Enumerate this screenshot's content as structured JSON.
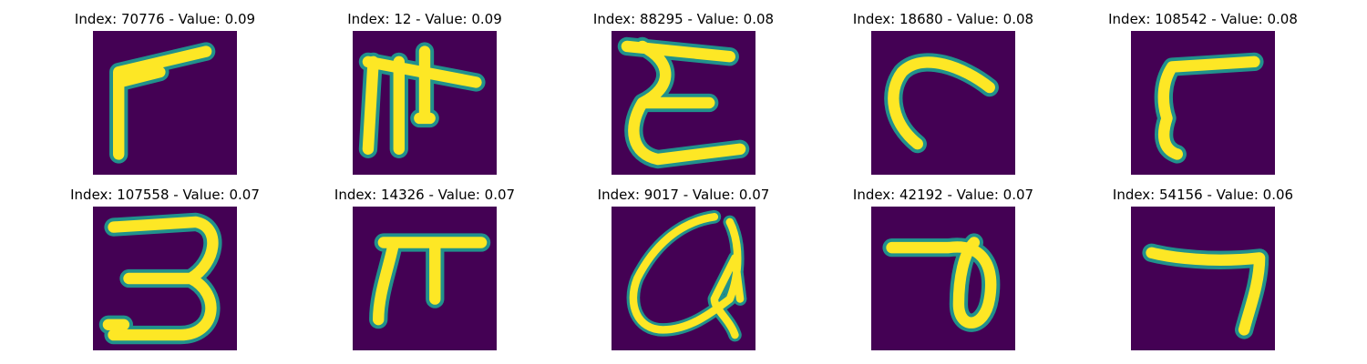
{
  "colors": {
    "background": "#440154",
    "stroke_edge": "#21918c",
    "stroke_core": "#fde725"
  },
  "panels": [
    {
      "index": "70776",
      "value": "0.09",
      "title": "Index: 70776 - Value: 0.09",
      "glyph": "bent-stroke-1"
    },
    {
      "index": "12",
      "value": "0.09",
      "title": "Index: 12 - Value: 0.09",
      "glyph": "double-pi"
    },
    {
      "index": "88295",
      "value": "0.08",
      "title": "Index: 88295 - Value: 0.08",
      "glyph": "epsilon"
    },
    {
      "index": "18680",
      "value": "0.08",
      "title": "Index: 18680 - Value: 0.08",
      "glyph": "hook"
    },
    {
      "index": "108542",
      "value": "0.08",
      "title": "Index: 108542 - Value: 0.08",
      "glyph": "bent-stroke-2"
    },
    {
      "index": "107558",
      "value": "0.07",
      "title": "Index: 107558 - Value: 0.07",
      "glyph": "three"
    },
    {
      "index": "14326",
      "value": "0.07",
      "title": "Index: 14326 - Value: 0.07",
      "glyph": "pi"
    },
    {
      "index": "9017",
      "value": "0.07",
      "title": "Index: 9017 - Value: 0.07",
      "glyph": "loop-q"
    },
    {
      "index": "42192",
      "value": "0.07",
      "title": "Index: 42192 - Value: 0.07",
      "glyph": "loop-7"
    },
    {
      "index": "54156",
      "value": "0.06",
      "title": "Index: 54156 - Value: 0.06",
      "glyph": "seven"
    }
  ]
}
